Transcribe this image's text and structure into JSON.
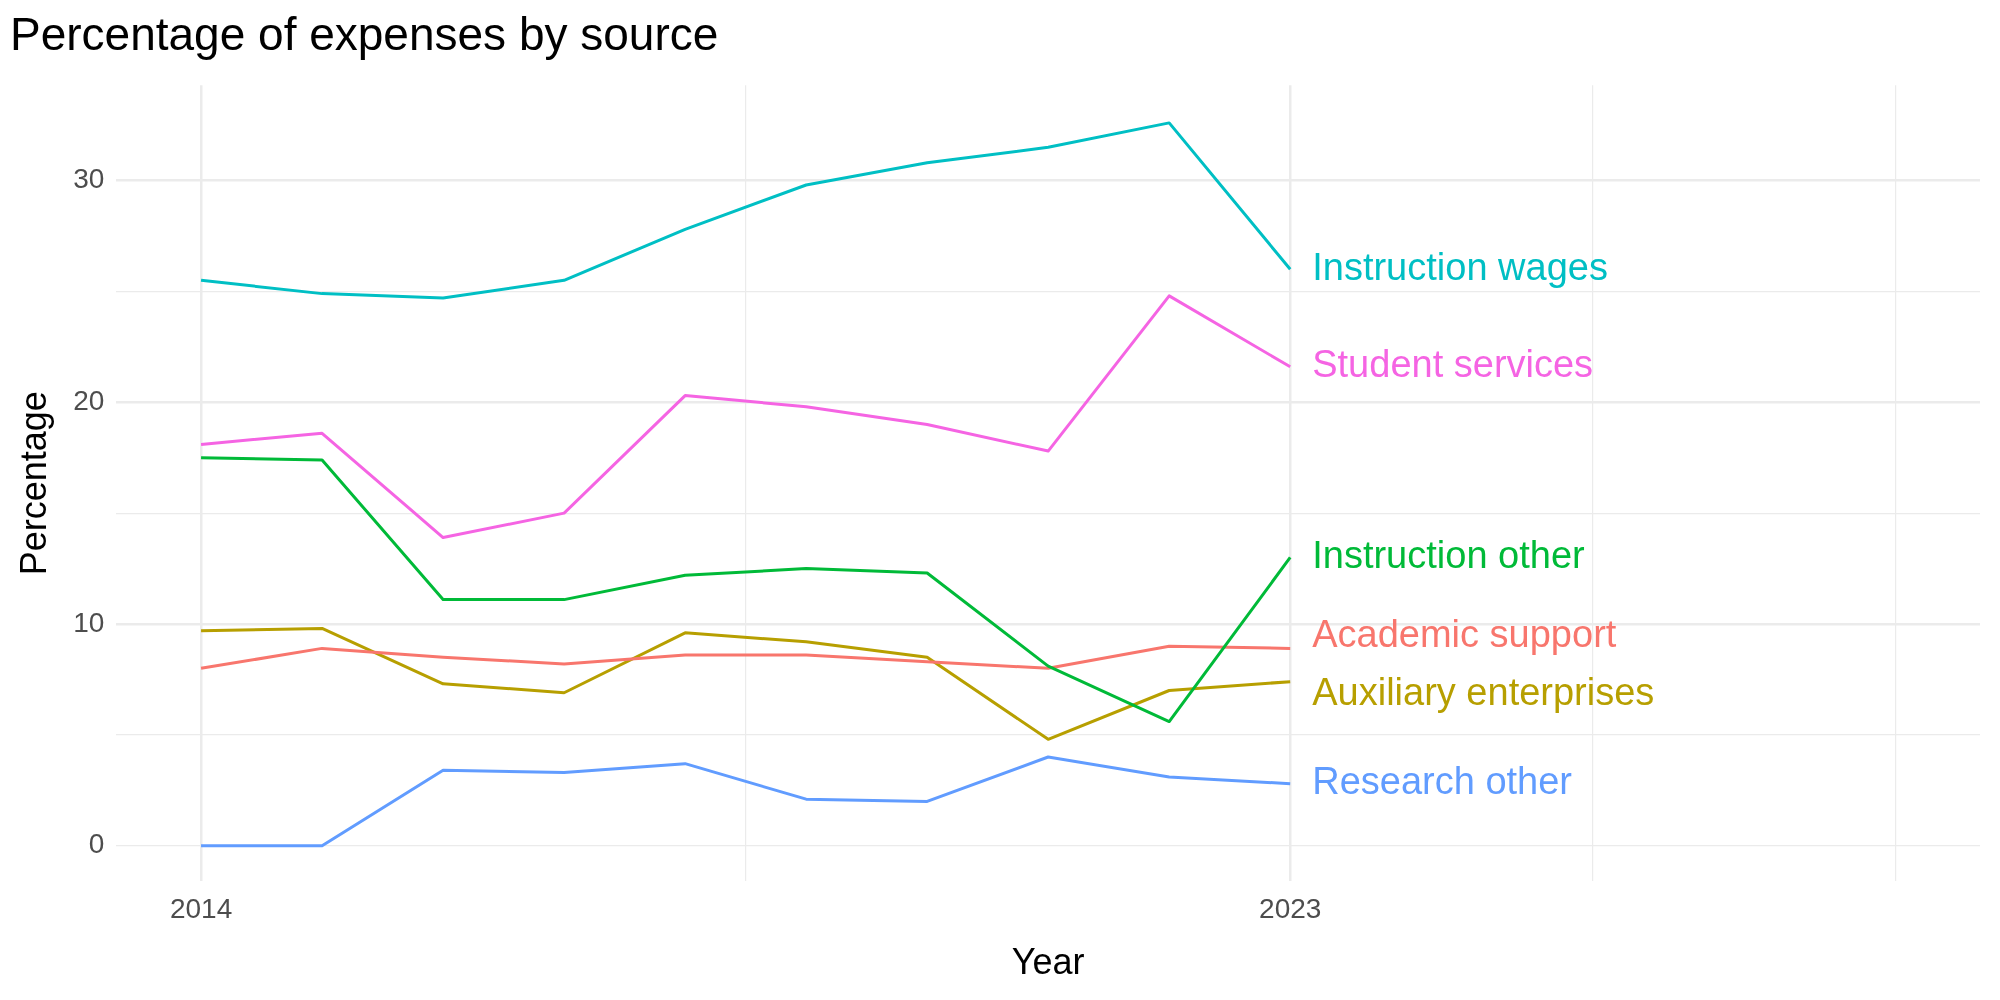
{
  "chart_data": {
    "type": "line",
    "title": "Percentage of expenses by source",
    "xlabel": "Year",
    "ylabel": "Percentage",
    "x": [
      2014,
      2015,
      2016,
      2017,
      2018,
      2019,
      2020,
      2021,
      2022,
      2023
    ],
    "xlim": [
      2013.3,
      2028.7
    ],
    "xticks": [
      2014,
      {
        "value": 2018.5,
        "label": null
      },
      2023,
      {
        "value": 2025.5,
        "label": null
      },
      {
        "value": 2028,
        "label": null
      }
    ],
    "ylim": [
      -1.6,
      34.3
    ],
    "yticks": [
      0,
      {
        "value": 5,
        "label": null
      },
      10,
      {
        "value": 15,
        "label": null
      },
      20,
      {
        "value": 25,
        "label": null
      },
      30
    ],
    "grid": true,
    "marker": "none",
    "line_style": "solid",
    "series": [
      {
        "name": "Instruction wages",
        "color": "#00bfc4",
        "values": [
          25.5,
          24.9,
          24.7,
          25.5,
          27.8,
          29.8,
          30.8,
          31.5,
          32.6,
          26.0
        ]
      },
      {
        "name": "Student services",
        "color": "#f564e3",
        "values": [
          18.1,
          18.6,
          13.9,
          15.0,
          20.3,
          19.8,
          19.0,
          17.8,
          24.8,
          21.6
        ]
      },
      {
        "name": "Instruction other",
        "color": "#00ba38",
        "values": [
          17.5,
          17.4,
          11.1,
          11.1,
          12.2,
          12.5,
          12.3,
          8.1,
          5.6,
          13.0
        ]
      },
      {
        "name": "Academic support",
        "color": "#f8766d",
        "values": [
          8.0,
          8.9,
          8.5,
          8.2,
          8.6,
          8.6,
          8.3,
          8.0,
          9.0,
          8.9
        ]
      },
      {
        "name": "Auxiliary enterprises",
        "color": "#b79f00",
        "values": [
          9.7,
          9.8,
          7.3,
          6.9,
          9.6,
          9.2,
          8.5,
          4.8,
          7.0,
          7.4
        ]
      },
      {
        "name": "Research other",
        "color": "#619cff",
        "values": [
          0,
          0,
          3.4,
          3.3,
          3.7,
          2.1,
          2.0,
          4.0,
          3.1,
          2.8
        ]
      }
    ]
  }
}
